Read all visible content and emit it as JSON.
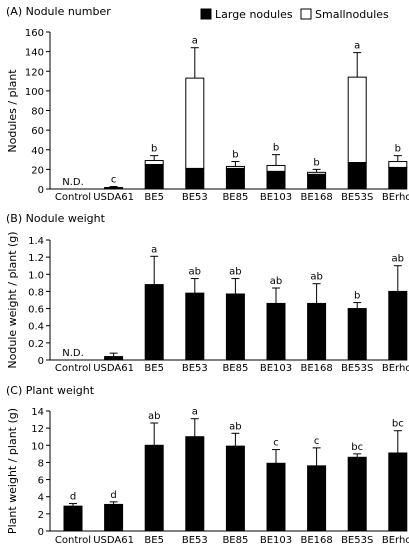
{
  "legend": {
    "large_label": "Large nodules",
    "small_label": "Smallnodules",
    "large_color": "#000000",
    "small_color": "#ffffff"
  },
  "chart_data": [
    {
      "type": "bar",
      "stacked": true,
      "title": "(A) Nodule number",
      "ylabel": "Nodules / plant",
      "ylim": [
        0,
        160
      ],
      "yticks": [
        0,
        20,
        40,
        60,
        80,
        100,
        120,
        140,
        160
      ],
      "categories": [
        "Control",
        "USDA61",
        "BE5",
        "BE53",
        "BE85",
        "BE103",
        "BE168",
        "BE53S",
        "BErhcJ"
      ],
      "series": [
        {
          "name": "Large nodules",
          "values": [
            0,
            1,
            25,
            21,
            21,
            18,
            15,
            27,
            22
          ],
          "errors": [
            0,
            0,
            0,
            9,
            0,
            0,
            0,
            5,
            0
          ]
        },
        {
          "name": "Smallnodules",
          "values": [
            0,
            0.5,
            4,
            92,
            2,
            6,
            2,
            87,
            6
          ],
          "errors": [
            0,
            1,
            5,
            31,
            5,
            11,
            3,
            25,
            6
          ]
        }
      ],
      "annotations": [
        "N.D.",
        "c",
        "b",
        "a",
        "b",
        "b",
        "b",
        "a",
        "b"
      ],
      "legend_position": "top-right"
    },
    {
      "type": "bar",
      "title": "(B) Nodule weight",
      "ylabel": "Nodule weight / plant (g)",
      "ylim": [
        0,
        1.4
      ],
      "yticks": [
        "0",
        "0.2",
        "0.4",
        "0.6",
        "0.8",
        "1.0",
        "1.2",
        "1.4"
      ],
      "categories": [
        "Control",
        "USDA61",
        "BE5",
        "BE53",
        "BE85",
        "BE103",
        "BE168",
        "BE53S",
        "BErhcJ"
      ],
      "values": [
        0,
        0.04,
        0.88,
        0.78,
        0.77,
        0.66,
        0.66,
        0.6,
        0.8
      ],
      "errors": [
        0,
        0.04,
        0.33,
        0.17,
        0.18,
        0.18,
        0.23,
        0.07,
        0.3
      ],
      "annotations": [
        "N.D.",
        "",
        "a",
        "ab",
        "ab",
        "ab",
        "ab",
        "b",
        "ab"
      ]
    },
    {
      "type": "bar",
      "title": "(C) Plant weight",
      "ylabel": "Plant weight / plant (g)",
      "ylim": [
        0,
        14
      ],
      "yticks": [
        0,
        2,
        4,
        6,
        8,
        10,
        12,
        14
      ],
      "categories": [
        "Control",
        "USDA61",
        "BE5",
        "BE53",
        "BE85",
        "BE103",
        "BE168",
        "BE53S",
        "BErhcJ"
      ],
      "values": [
        2.9,
        3.1,
        10.0,
        11.0,
        9.9,
        7.9,
        7.6,
        8.6,
        9.1
      ],
      "errors": [
        0.3,
        0.3,
        2.6,
        2.1,
        1.5,
        1.6,
        2.1,
        0.4,
        2.6
      ],
      "annotations": [
        "d",
        "d",
        "ab",
        "a",
        "ab",
        "c",
        "c",
        "bc",
        "bc"
      ]
    }
  ]
}
